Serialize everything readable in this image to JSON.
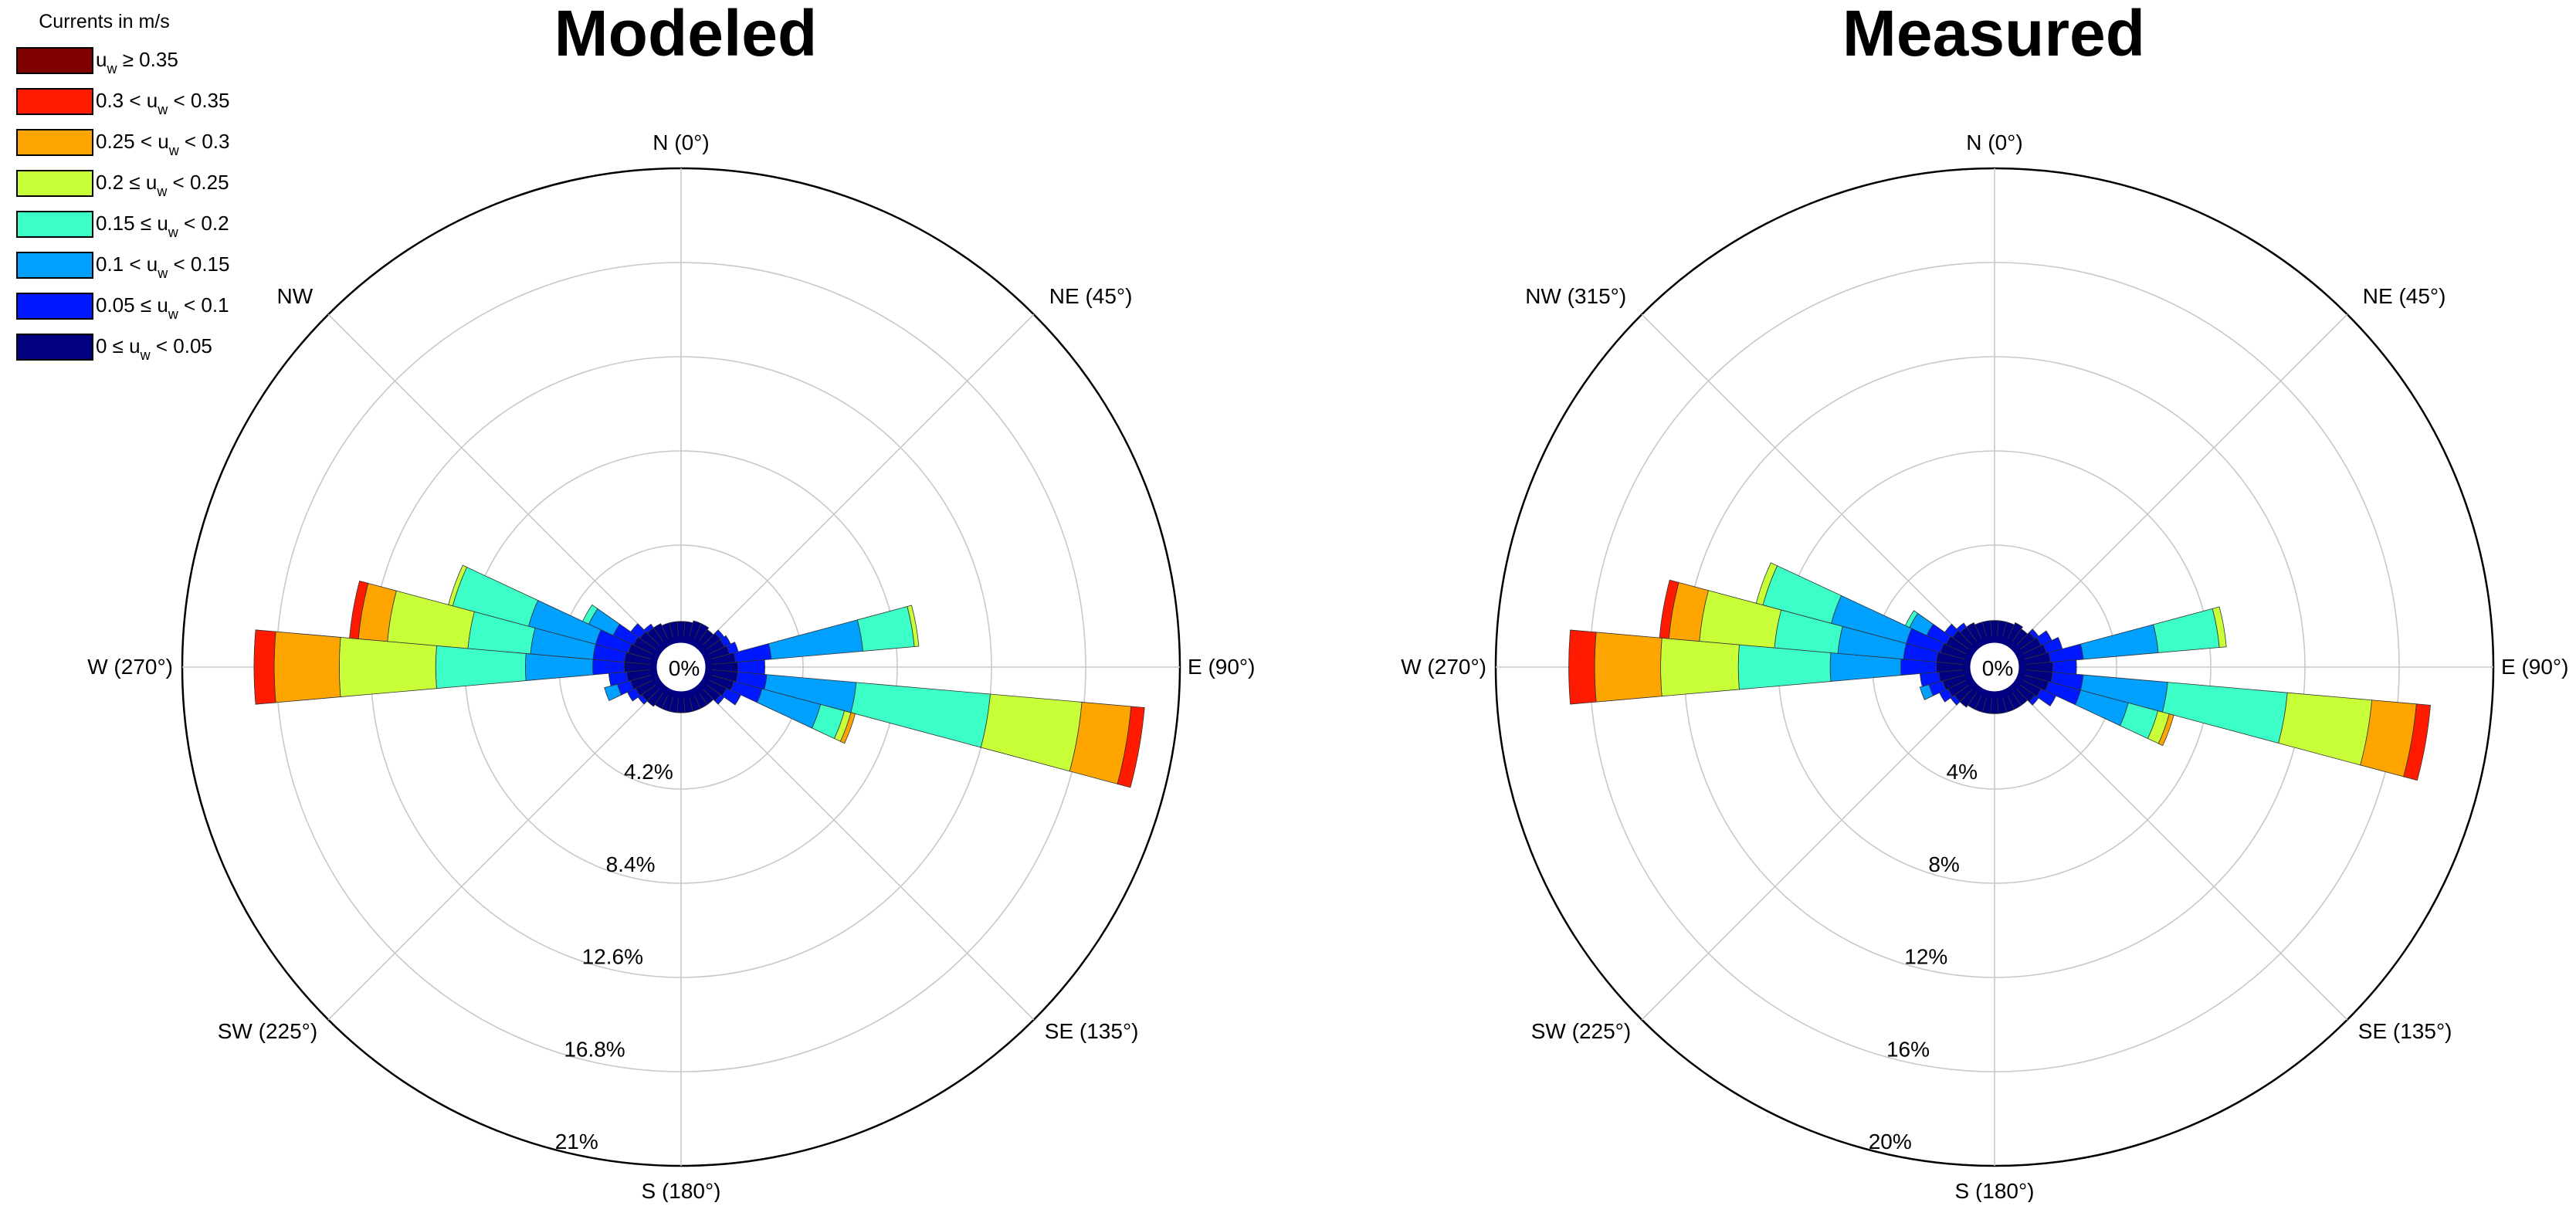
{
  "legend": {
    "title": "Currents in m/s",
    "entries": [
      {
        "label": "u",
        "sub": "w",
        "rest": " ≥ 0.35",
        "color": "#800000"
      },
      {
        "label": "0.3 < u",
        "sub": "w",
        "rest": " < 0.35",
        "color": "#ff1a00"
      },
      {
        "label": "0.25 < u",
        "sub": "w",
        "rest": " < 0.3",
        "color": "#ffa500"
      },
      {
        "label": "0.2 ≤ u",
        "sub": "w",
        "rest": " < 0.25",
        "color": "#c8ff38"
      },
      {
        "label": "0.15 ≤ u",
        "sub": "w",
        "rest": " < 0.2",
        "color": "#3cffc8"
      },
      {
        "label": "0.1 < u",
        "sub": "w",
        "rest": " < 0.15",
        "color": "#00a0ff"
      },
      {
        "label": "0.05 ≤ u",
        "sub": "w",
        "rest": " < 0.1",
        "color": "#0018ff"
      },
      {
        "label": "0 ≤ u",
        "sub": "w",
        "rest": " < 0.05",
        "color": "#000080"
      }
    ]
  },
  "chart_data": [
    {
      "type": "wind-rose",
      "title": "Modeled",
      "center_label": "0%",
      "rmax": 21,
      "rings": [
        4.2,
        8.4,
        12.6,
        16.8,
        21
      ],
      "ring_labels": [
        "4.2%",
        "8.4%",
        "12.6%",
        "16.8%",
        "21%"
      ],
      "direction_labels": [
        {
          "angle": 0,
          "text": "N (0°)"
        },
        {
          "angle": 45,
          "text": "NE (45°)"
        },
        {
          "angle": 90,
          "text": "E (90°)"
        },
        {
          "angle": 135,
          "text": "SE (135°)"
        },
        {
          "angle": 180,
          "text": "S (180°)"
        },
        {
          "angle": 225,
          "text": "SW (225°)"
        },
        {
          "angle": 270,
          "text": "W (270°)"
        },
        {
          "angle": 315,
          "text": "NW"
        }
      ],
      "bin_width_deg": 10,
      "petals": [
        {
          "dir": 0,
          "values": [
            0.8
          ]
        },
        {
          "dir": 10,
          "values": [
            0.8
          ]
        },
        {
          "dir": 20,
          "values": [
            0.9
          ]
        },
        {
          "dir": 30,
          "values": [
            0.9
          ]
        },
        {
          "dir": 40,
          "values": [
            0.8
          ]
        },
        {
          "dir": 50,
          "values": [
            0.9,
            0.2
          ]
        },
        {
          "dir": 60,
          "values": [
            0.9,
            0.3
          ]
        },
        {
          "dir": 70,
          "values": [
            1.0,
            0.4
          ]
        },
        {
          "dir": 80,
          "values": [
            1.2,
            1.6,
            4.1,
            2.3,
            0.2
          ]
        },
        {
          "dir": 90,
          "values": [
            1.3,
            1.2
          ]
        },
        {
          "dir": 100,
          "values": [
            1.3,
            1.3,
            4.0,
            6.0,
            4.1,
            2.2,
            0.6
          ]
        },
        {
          "dir": 110,
          "values": [
            1.2,
            1.3,
            2.7,
            1.1,
            0.3,
            0.2
          ]
        },
        {
          "dir": 120,
          "values": [
            1.0,
            0.7
          ]
        },
        {
          "dir": 130,
          "values": [
            0.9,
            0.2
          ]
        },
        {
          "dir": 140,
          "values": [
            0.8
          ]
        },
        {
          "dir": 150,
          "values": [
            0.8
          ]
        },
        {
          "dir": 160,
          "values": [
            0.8
          ]
        },
        {
          "dir": 170,
          "values": [
            0.8
          ]
        },
        {
          "dir": 180,
          "values": [
            0.8
          ]
        },
        {
          "dir": 190,
          "values": [
            0.8
          ]
        },
        {
          "dir": 200,
          "values": [
            0.8
          ]
        },
        {
          "dir": 210,
          "values": [
            0.8
          ]
        },
        {
          "dir": 220,
          "values": [
            0.9
          ]
        },
        {
          "dir": 230,
          "values": [
            0.9,
            0.2
          ]
        },
        {
          "dir": 240,
          "values": [
            1.0,
            0.4
          ]
        },
        {
          "dir": 250,
          "values": [
            1.1,
            0.6,
            0.6
          ]
        },
        {
          "dir": 260,
          "values": [
            1.2,
            0.8
          ]
        },
        {
          "dir": 270,
          "values": [
            1.3,
            1.4,
            3.0,
            4.0,
            4.3,
            2.9,
            0.9
          ]
        },
        {
          "dir": 280,
          "values": [
            1.3,
            1.4,
            2.8,
            2.8,
            3.6,
            1.3,
            0.4
          ]
        },
        {
          "dir": 290,
          "values": [
            1.2,
            1.5,
            3.1,
            3.5,
            0.2
          ]
        },
        {
          "dir": 300,
          "values": [
            1.1,
            1.0,
            1.2,
            0.3
          ]
        },
        {
          "dir": 310,
          "values": [
            1.0,
            0.5
          ]
        },
        {
          "dir": 320,
          "values": [
            0.9,
            0.2
          ]
        },
        {
          "dir": 330,
          "values": [
            0.9
          ]
        },
        {
          "dir": 340,
          "values": [
            0.8
          ]
        },
        {
          "dir": 350,
          "values": [
            0.8
          ]
        }
      ]
    },
    {
      "type": "wind-rose",
      "title": "Measured",
      "center_label": "0%",
      "rmax": 20,
      "rings": [
        4,
        8,
        12,
        16,
        20
      ],
      "ring_labels": [
        "4%",
        "8%",
        "12%",
        "16%",
        "20%"
      ],
      "direction_labels": [
        {
          "angle": 0,
          "text": "N (0°)"
        },
        {
          "angle": 45,
          "text": "NE (45°)"
        },
        {
          "angle": 90,
          "text": "E (90°)"
        },
        {
          "angle": 135,
          "text": "SE (135°)"
        },
        {
          "angle": 180,
          "text": "S (180°)"
        },
        {
          "angle": 225,
          "text": "SW (225°)"
        },
        {
          "angle": 270,
          "text": "W (270°)"
        },
        {
          "angle": 315,
          "text": "NW (315°)"
        }
      ],
      "bin_width_deg": 10,
      "petals": [
        {
          "dir": 0,
          "values": [
            0.8
          ]
        },
        {
          "dir": 10,
          "values": [
            0.8
          ]
        },
        {
          "dir": 20,
          "values": [
            0.8
          ]
        },
        {
          "dir": 30,
          "values": [
            0.9
          ]
        },
        {
          "dir": 40,
          "values": [
            0.8
          ]
        },
        {
          "dir": 50,
          "values": [
            0.9,
            0.2
          ]
        },
        {
          "dir": 60,
          "values": [
            1.0,
            0.5
          ]
        },
        {
          "dir": 70,
          "values": [
            1.1,
            0.7
          ]
        },
        {
          "dir": 80,
          "values": [
            1.2,
            1.4,
            3.2,
            2.6,
            0.3
          ]
        },
        {
          "dir": 90,
          "values": [
            1.3,
            1.0
          ]
        },
        {
          "dir": 100,
          "values": [
            1.3,
            1.3,
            3.6,
            5.1,
            3.6,
            1.9,
            0.6
          ]
        },
        {
          "dir": 110,
          "values": [
            1.2,
            1.4,
            2.1,
            1.3,
            0.5,
            0.2
          ]
        },
        {
          "dir": 120,
          "values": [
            1.0,
            0.7
          ]
        },
        {
          "dir": 130,
          "values": [
            0.9,
            0.2
          ]
        },
        {
          "dir": 140,
          "values": [
            0.8
          ]
        },
        {
          "dir": 150,
          "values": [
            0.8
          ]
        },
        {
          "dir": 160,
          "values": [
            0.8
          ]
        },
        {
          "dir": 170,
          "values": [
            0.8
          ]
        },
        {
          "dir": 180,
          "values": [
            0.8
          ]
        },
        {
          "dir": 190,
          "values": [
            0.8
          ]
        },
        {
          "dir": 200,
          "values": [
            0.8
          ]
        },
        {
          "dir": 210,
          "values": [
            0.8
          ]
        },
        {
          "dir": 220,
          "values": [
            0.9
          ]
        },
        {
          "dir": 230,
          "values": [
            0.9,
            0.2
          ]
        },
        {
          "dir": 240,
          "values": [
            1.0,
            0.4
          ]
        },
        {
          "dir": 250,
          "values": [
            1.1,
            0.6,
            0.4
          ]
        },
        {
          "dir": 260,
          "values": [
            1.2,
            0.8
          ]
        },
        {
          "dir": 270,
          "values": [
            1.3,
            1.5,
            3.0,
            3.9,
            3.3,
            2.8,
            1.1
          ]
        },
        {
          "dir": 280,
          "values": [
            1.3,
            1.4,
            2.8,
            2.7,
            3.2,
            1.3,
            0.4
          ]
        },
        {
          "dir": 290,
          "values": [
            1.2,
            1.5,
            3.3,
            3.0,
            0.3
          ]
        },
        {
          "dir": 300,
          "values": [
            1.1,
            0.9,
            0.8,
            0.2
          ]
        },
        {
          "dir": 310,
          "values": [
            1.0,
            0.4
          ]
        },
        {
          "dir": 320,
          "values": [
            0.9,
            0.2
          ]
        },
        {
          "dir": 330,
          "values": [
            0.9
          ]
        },
        {
          "dir": 340,
          "values": [
            0.8
          ]
        },
        {
          "dir": 350,
          "values": [
            0.8
          ]
        }
      ]
    }
  ]
}
